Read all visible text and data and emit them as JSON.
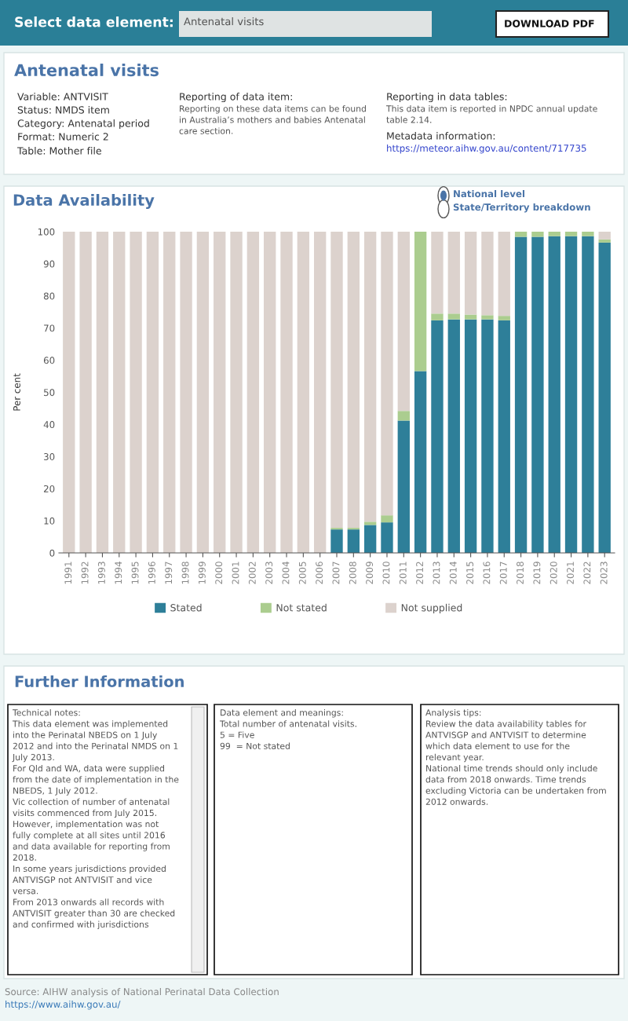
{
  "chart_data": {
    "type": "bar",
    "title": "Data Availability",
    "ylabel": "Per cent",
    "stacked": true,
    "categories": [
      "1991",
      "1992",
      "1993",
      "1994",
      "1995",
      "1996",
      "1997",
      "1998",
      "1999",
      "2000",
      "2001",
      "2002",
      "2003",
      "2004",
      "2005",
      "2006",
      "2007",
      "2008",
      "2009",
      "2010",
      "2011",
      "2012",
      "2013",
      "2014",
      "2015",
      "2016",
      "2017",
      "2018",
      "2019",
      "2020",
      "2021",
      "2022",
      "2023"
    ],
    "series": [
      {
        "name": "Stated",
        "color": "#2e7f99",
        "values": [
          0,
          0,
          0,
          0,
          0,
          0,
          0,
          0,
          0,
          0,
          0,
          0,
          0,
          0,
          0,
          0,
          7.3,
          7.3,
          8.7,
          9.5,
          41.2,
          56.6,
          72.4,
          72.7,
          72.7,
          72.7,
          72.4,
          98.4,
          98.4,
          98.6,
          98.6,
          98.6,
          96.6
        ]
      },
      {
        "name": "Not stated",
        "color": "#abcd8f",
        "values": [
          0,
          0,
          0,
          0,
          0,
          0,
          0,
          0,
          0,
          0,
          0,
          0,
          0,
          0,
          0,
          0,
          0.5,
          0.5,
          1.0,
          2.2,
          3.0,
          43.4,
          2.1,
          1.8,
          1.5,
          1.3,
          1.4,
          1.6,
          1.6,
          1.4,
          1.4,
          1.4,
          1.0
        ]
      },
      {
        "name": "Not supplied",
        "color": "#dcd2cd",
        "values": [
          100,
          100,
          100,
          100,
          100,
          100,
          100,
          100,
          100,
          100,
          100,
          100,
          100,
          100,
          100,
          100,
          92.2,
          92.2,
          90.3,
          88.3,
          55.8,
          0,
          25.5,
          25.5,
          25.8,
          26.0,
          26.2,
          0,
          0,
          0,
          0,
          0,
          2.4
        ]
      }
    ],
    "ylim": [
      0,
      100
    ],
    "yticks": [
      0,
      10,
      20,
      30,
      40,
      50,
      60,
      70,
      80,
      90,
      100
    ],
    "grid": false,
    "legend": "bottom",
    "annotations": [
      "Select data element:",
      "Antenatal visits",
      "DOWNLOAD PDF",
      "Antenatal visits",
      "Variable: ANTVISIT",
      "Status: NMDS item",
      "Category: Antenatal period",
      "Format: Numeric 2",
      "Table: Mother file",
      "Reporting of data item:",
      "Reporting on these data items can be found\nin Australia’s mothers and babies Antenatal\ncare section.",
      "Reporting in data tables:",
      "This data item is reported in NPDC annual update\ntable 2.14.",
      "Metadata information:",
      "https://meteor.aihw.gov.au/content/717735",
      "National level",
      "State/Territory breakdown",
      "Further Information",
      "Technical notes:\nThis data element was implemented\ninto the Perinatal NBEDS on 1 July\n2012 and into the Perinatal NMDS on 1\nJuly 2013.\nFor Qld and WA, data were supplied\nfrom the date of implementation in the\nNBEDS, 1 July 2012.\nVic collection of number of antenatal\nvisits commenced from July 2015.\nHowever, implementation was not\nfully complete at all sites until 2016\nand data available for reporting from\n2018.\nIn some years jurisdictions provided\nANTVISGP not ANTVISIT and vice\nversa.\nFrom 2013 onwards all records with\nANTVISIT greater than 30 are checked\nand confirmed with jurisdictions",
      "Data element and meanings:\nTotal number of antenatal visits.\n5 = Five\n99  = Not stated",
      "Analysis tips:\nReview the data availability tables for\nANTVISGP and ANTVISIT to determine\nwhich data element to use for the\nrelevant year.\nNational time trends should only include\ndata from 2018 onwards. Time trends\nexcluding Victoria can be undertaken from\n2012 onwards.",
      "Source: AIHW analysis of National Perinatal Data Collection",
      "https://www.aihw.gov.au/"
    ]
  }
}
